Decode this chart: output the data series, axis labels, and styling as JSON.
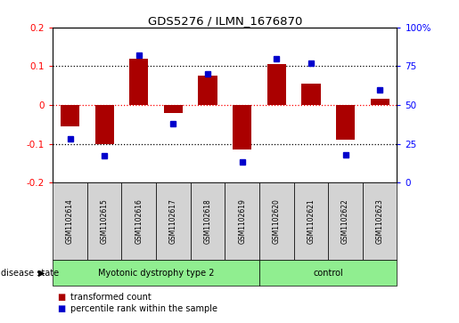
{
  "title": "GDS5276 / ILMN_1676870",
  "samples": [
    "GSM1102614",
    "GSM1102615",
    "GSM1102616",
    "GSM1102617",
    "GSM1102618",
    "GSM1102619",
    "GSM1102620",
    "GSM1102621",
    "GSM1102622",
    "GSM1102623"
  ],
  "transformed_count": [
    -0.055,
    -0.1,
    0.12,
    -0.02,
    0.075,
    -0.115,
    0.105,
    0.055,
    -0.09,
    0.015
  ],
  "percentile_rank": [
    28,
    17,
    82,
    38,
    70,
    13,
    80,
    77,
    18,
    60
  ],
  "groups": [
    {
      "label": "Myotonic dystrophy type 2",
      "start": 0,
      "end": 6
    },
    {
      "label": "control",
      "start": 6,
      "end": 10
    }
  ],
  "ylim_left": [
    -0.2,
    0.2
  ],
  "ylim_right": [
    0,
    100
  ],
  "bar_color": "#AA0000",
  "dot_color": "#0000CC",
  "background_color": "#ffffff",
  "plot_bg_color": "#ffffff",
  "label_box_color": "#d3d3d3",
  "green_color": "#90EE90",
  "right_yticks": [
    0,
    25,
    50,
    75,
    100
  ],
  "right_yticklabels": [
    "0",
    "25",
    "50",
    "75",
    "100%"
  ],
  "left_yticks": [
    -0.2,
    -0.1,
    0.0,
    0.1,
    0.2
  ],
  "left_yticklabels": [
    "-0.2",
    "-0.1",
    "0",
    "0.1",
    "0.2"
  ]
}
